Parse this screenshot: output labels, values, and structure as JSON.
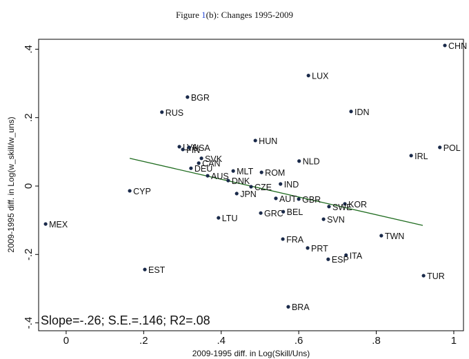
{
  "caption": {
    "prefix": "Figure ",
    "ref": "1",
    "suffix": "(b): Changes 1995-2009"
  },
  "chart_data": {
    "type": "scatter",
    "x_label": "2009-1995 diff. in Log(Skill/Uns)",
    "y_label": "2009-1995 diff. in Log(w_skill/w_uns)",
    "annotation": "Slope=-.26; S.E.=.146; R2=.08",
    "color": "#1a2a4a",
    "labels": [
      "CHN",
      "LUX",
      "BGR",
      "IDN",
      "RUS",
      "HUN",
      "POL",
      "LVA",
      "FIN",
      "USA",
      "IRL",
      "SVK",
      "NLD",
      "CAN",
      "DEU",
      "MLT",
      "ROM",
      "AUS",
      "DNK",
      "IND",
      "CZE",
      "CYP",
      "JPN",
      "AUT",
      "GBR",
      "KOR",
      "SWE",
      "GRC",
      "BEL",
      "LTU",
      "SVN",
      "MEX",
      "TWN",
      "FRA",
      "PRT",
      "ITA",
      "ESP",
      "EST",
      "TUR",
      "BRA"
    ],
    "x": [
      0.977,
      0.625,
      0.313,
      0.735,
      0.247,
      0.488,
      0.964,
      0.292,
      0.301,
      0.317,
      0.89,
      0.349,
      0.601,
      0.342,
      0.322,
      0.431,
      0.504,
      0.365,
      0.418,
      0.553,
      0.477,
      0.164,
      0.44,
      0.541,
      0.6,
      0.719,
      0.678,
      0.502,
      0.56,
      0.393,
      0.664,
      -0.053,
      0.813,
      0.559,
      0.623,
      0.722,
      0.676,
      0.203,
      0.922,
      0.573
    ],
    "values": [
      0.411,
      0.323,
      0.26,
      0.218,
      0.216,
      0.133,
      0.113,
      0.115,
      0.107,
      0.113,
      0.089,
      0.081,
      0.073,
      0.067,
      0.052,
      0.044,
      0.04,
      0.03,
      0.016,
      0.006,
      -0.002,
      -0.014,
      -0.022,
      -0.036,
      -0.038,
      -0.052,
      -0.06,
      -0.079,
      -0.075,
      -0.093,
      -0.097,
      -0.111,
      -0.145,
      -0.155,
      -0.181,
      -0.202,
      -0.214,
      -0.244,
      -0.262,
      -0.353
    ],
    "fit": {
      "x": [
        0.164,
        0.92
      ],
      "values": [
        0.081,
        -0.115
      ],
      "color": "#1e6b1e"
    },
    "xlim": [
      -0.071,
      1.025
    ],
    "ylim": [
      -0.423,
      0.429
    ],
    "xticks": [
      0,
      {
        "value": 0.2,
        "label": ".2"
      },
      {
        "value": 0.4,
        "label": ".4"
      },
      {
        "value": 0.6,
        "label": ".6"
      },
      {
        "value": 0.8,
        "label": ".8"
      },
      1
    ],
    "yticks": [
      {
        "value": -0.4,
        "label": "-.4"
      },
      {
        "value": -0.2,
        "label": "-.2"
      },
      0,
      {
        "value": 0.2,
        "label": ".2"
      },
      {
        "value": 0.4,
        "label": ".4"
      }
    ]
  }
}
